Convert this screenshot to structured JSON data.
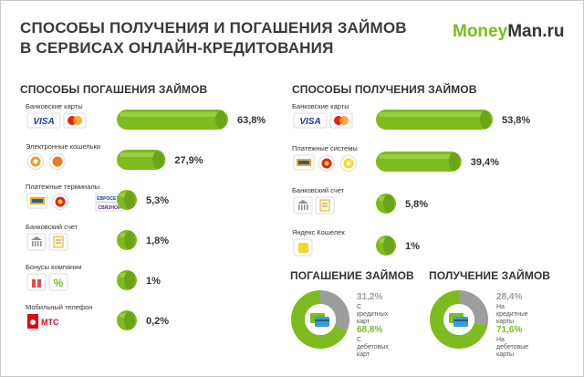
{
  "title_line1": "СПОСОБЫ ПОЛУЧЕНИЯ И ПОГАШЕНИЯ ЗАЙМОВ",
  "title_line2": "В СЕРВИСАХ ОНЛАЙН-КРЕДИТОВАНИЯ",
  "logo": {
    "part1": "Money",
    "part2": "Man.ru"
  },
  "colors": {
    "green": "#7dbb1f",
    "gray": "#9d9d9d",
    "text": "#333333"
  },
  "chart_data": [
    {
      "type": "bar",
      "title": "СПОСОБЫ ПОГАШЕНИЯ ЗАЙМОВ",
      "categories": [
        "Банковские карты",
        "Электронные кошельки",
        "Платежные терминалы",
        "Банковский счет",
        "Бонусы компании",
        "Мобильный телефон"
      ],
      "values": [
        63.8,
        27.9,
        5.3,
        1.8,
        1,
        0.2
      ],
      "value_labels": [
        "63,8%",
        "27,9%",
        "5,3%",
        "1,8%",
        "1%",
        "0,2%"
      ],
      "icons": [
        [
          "visa-logo",
          "mastercard-logo"
        ],
        [
          "qiwi-icon",
          "webmoney-icon"
        ],
        [
          "qiwi-terminal-icon",
          "eleksnet-icon",
          "euroset-logo"
        ],
        [
          "bank-icon",
          "document-icon"
        ],
        [
          "gift-icon",
          "percent-icon"
        ],
        [
          "mts-logo"
        ]
      ],
      "icon_texts": {
        "visa": "VISA",
        "eurosette": "ЕВРОСЕТЬ",
        "svyaznoy": "СВЯЗНОЙ",
        "mts": "МТС"
      }
    },
    {
      "type": "bar",
      "title": "СПОСОБЫ ПОЛУЧЕНИЯ ЗАЙМОВ",
      "categories": [
        "Банковские карты",
        "Платежные системы",
        "Банковский счет",
        "Яндекс Кошелек"
      ],
      "values": [
        53.8,
        39.4,
        5.8,
        1
      ],
      "value_labels": [
        "53,8%",
        "39,4%",
        "5,8%",
        "1%"
      ],
      "icons": [
        [
          "visa-logo",
          "mastercard-logo"
        ],
        [
          "contact-icon",
          "unistream-icon",
          "golden-crown-icon"
        ],
        [
          "bank-icon",
          "document-icon"
        ],
        [
          "yandex-money-icon"
        ]
      ]
    },
    {
      "type": "pie",
      "title": "ПОГАШЕНИЕ ЗАЙМОВ",
      "slices": [
        {
          "label": "С кредитных карт",
          "value": 31.2,
          "value_label": "31,2%",
          "color": "#9d9d9d"
        },
        {
          "label": "С дебетовых карт",
          "value": 68.8,
          "value_label": "68,8%",
          "color": "#7dbb1f"
        }
      ]
    },
    {
      "type": "pie",
      "title": "ПОЛУЧЕНИЕ ЗАЙМОВ",
      "slices": [
        {
          "label": "На кредитные карты",
          "value": 28.4,
          "value_label": "28,4%",
          "color": "#9d9d9d"
        },
        {
          "label": "На дебетовые карты",
          "value": 71.6,
          "value_label": "71,6%",
          "color": "#7dbb1f"
        }
      ]
    }
  ]
}
